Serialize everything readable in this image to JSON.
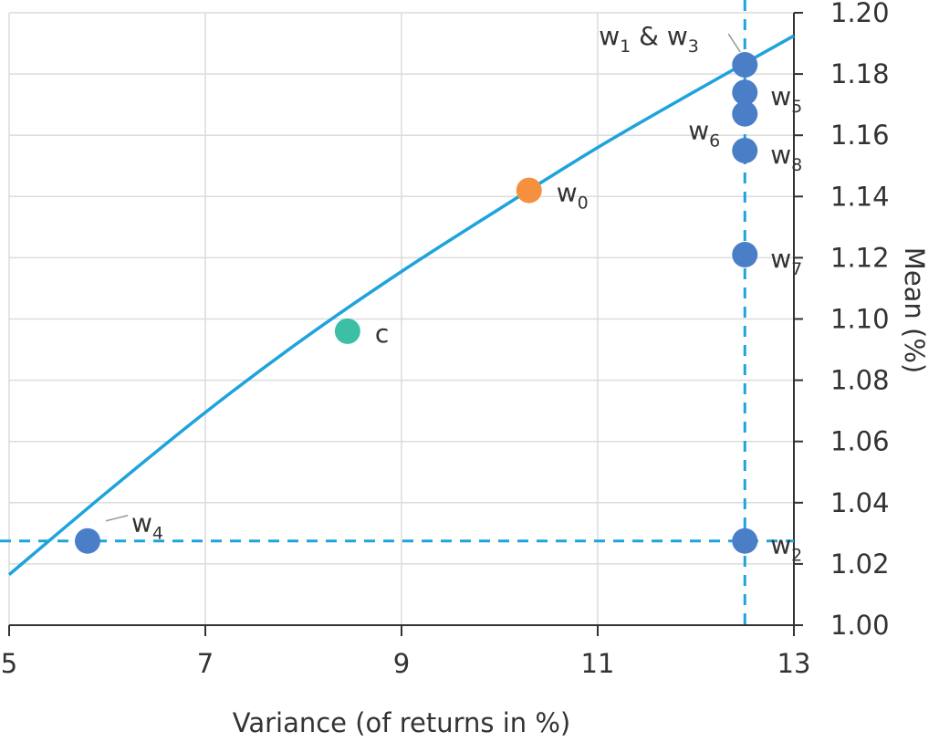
{
  "chart_data": {
    "type": "scatter",
    "xlabel": "Variance (of returns in %)",
    "ylabel": "Mean (%)",
    "xlim": [
      5,
      13
    ],
    "ylim": [
      1.0,
      1.2
    ],
    "x_ticks": [
      "5",
      "7",
      "9",
      "11",
      "13"
    ],
    "y_ticks": [
      "1.00",
      "1.02",
      "1.04",
      "1.06",
      "1.08",
      "1.10",
      "1.12",
      "1.14",
      "1.16",
      "1.18",
      "1.20"
    ],
    "grid": true,
    "frontier_curve": {
      "color": "#1ea3dc",
      "points": [
        [
          5.0,
          1.0165
        ],
        [
          6.0,
          1.0435
        ],
        [
          7.0,
          1.0695
        ],
        [
          8.0,
          1.0935
        ],
        [
          9.0,
          1.1155
        ],
        [
          10.0,
          1.136
        ],
        [
          11.0,
          1.156
        ],
        [
          12.0,
          1.1745
        ],
        [
          13.0,
          1.1925
        ]
      ]
    },
    "reference_lines": {
      "color": "#1ea3dc",
      "vertical_x": 12.5,
      "horizontal_y": 1.0275
    },
    "points": [
      {
        "id": "w1w3",
        "x": 12.5,
        "y": 1.183,
        "color": "#4a7fc8",
        "label": "w",
        "sub": "1",
        "label2": " & w",
        "sub2": "3"
      },
      {
        "id": "w5",
        "x": 12.5,
        "y": 1.174,
        "color": "#4a7fc8",
        "label": "w",
        "sub": "5"
      },
      {
        "id": "w6",
        "x": 12.5,
        "y": 1.167,
        "color": "#4a7fc8",
        "label": "w",
        "sub": "6"
      },
      {
        "id": "w8",
        "x": 12.5,
        "y": 1.155,
        "color": "#4a7fc8",
        "label": "w",
        "sub": "8"
      },
      {
        "id": "w0",
        "x": 10.3,
        "y": 1.142,
        "color": "#f5913e",
        "label": "w",
        "sub": "0"
      },
      {
        "id": "w7",
        "x": 12.5,
        "y": 1.121,
        "color": "#4a7fc8",
        "label": "w",
        "sub": "7"
      },
      {
        "id": "c",
        "x": 8.45,
        "y": 1.096,
        "color": "#3dbfa5",
        "label": "c",
        "sub": ""
      },
      {
        "id": "w4",
        "x": 5.8,
        "y": 1.0275,
        "color": "#4a7fc8",
        "label": "w",
        "sub": "4"
      },
      {
        "id": "w2",
        "x": 12.5,
        "y": 1.0275,
        "color": "#4a7fc8",
        "label": "w",
        "sub": "2"
      }
    ]
  }
}
